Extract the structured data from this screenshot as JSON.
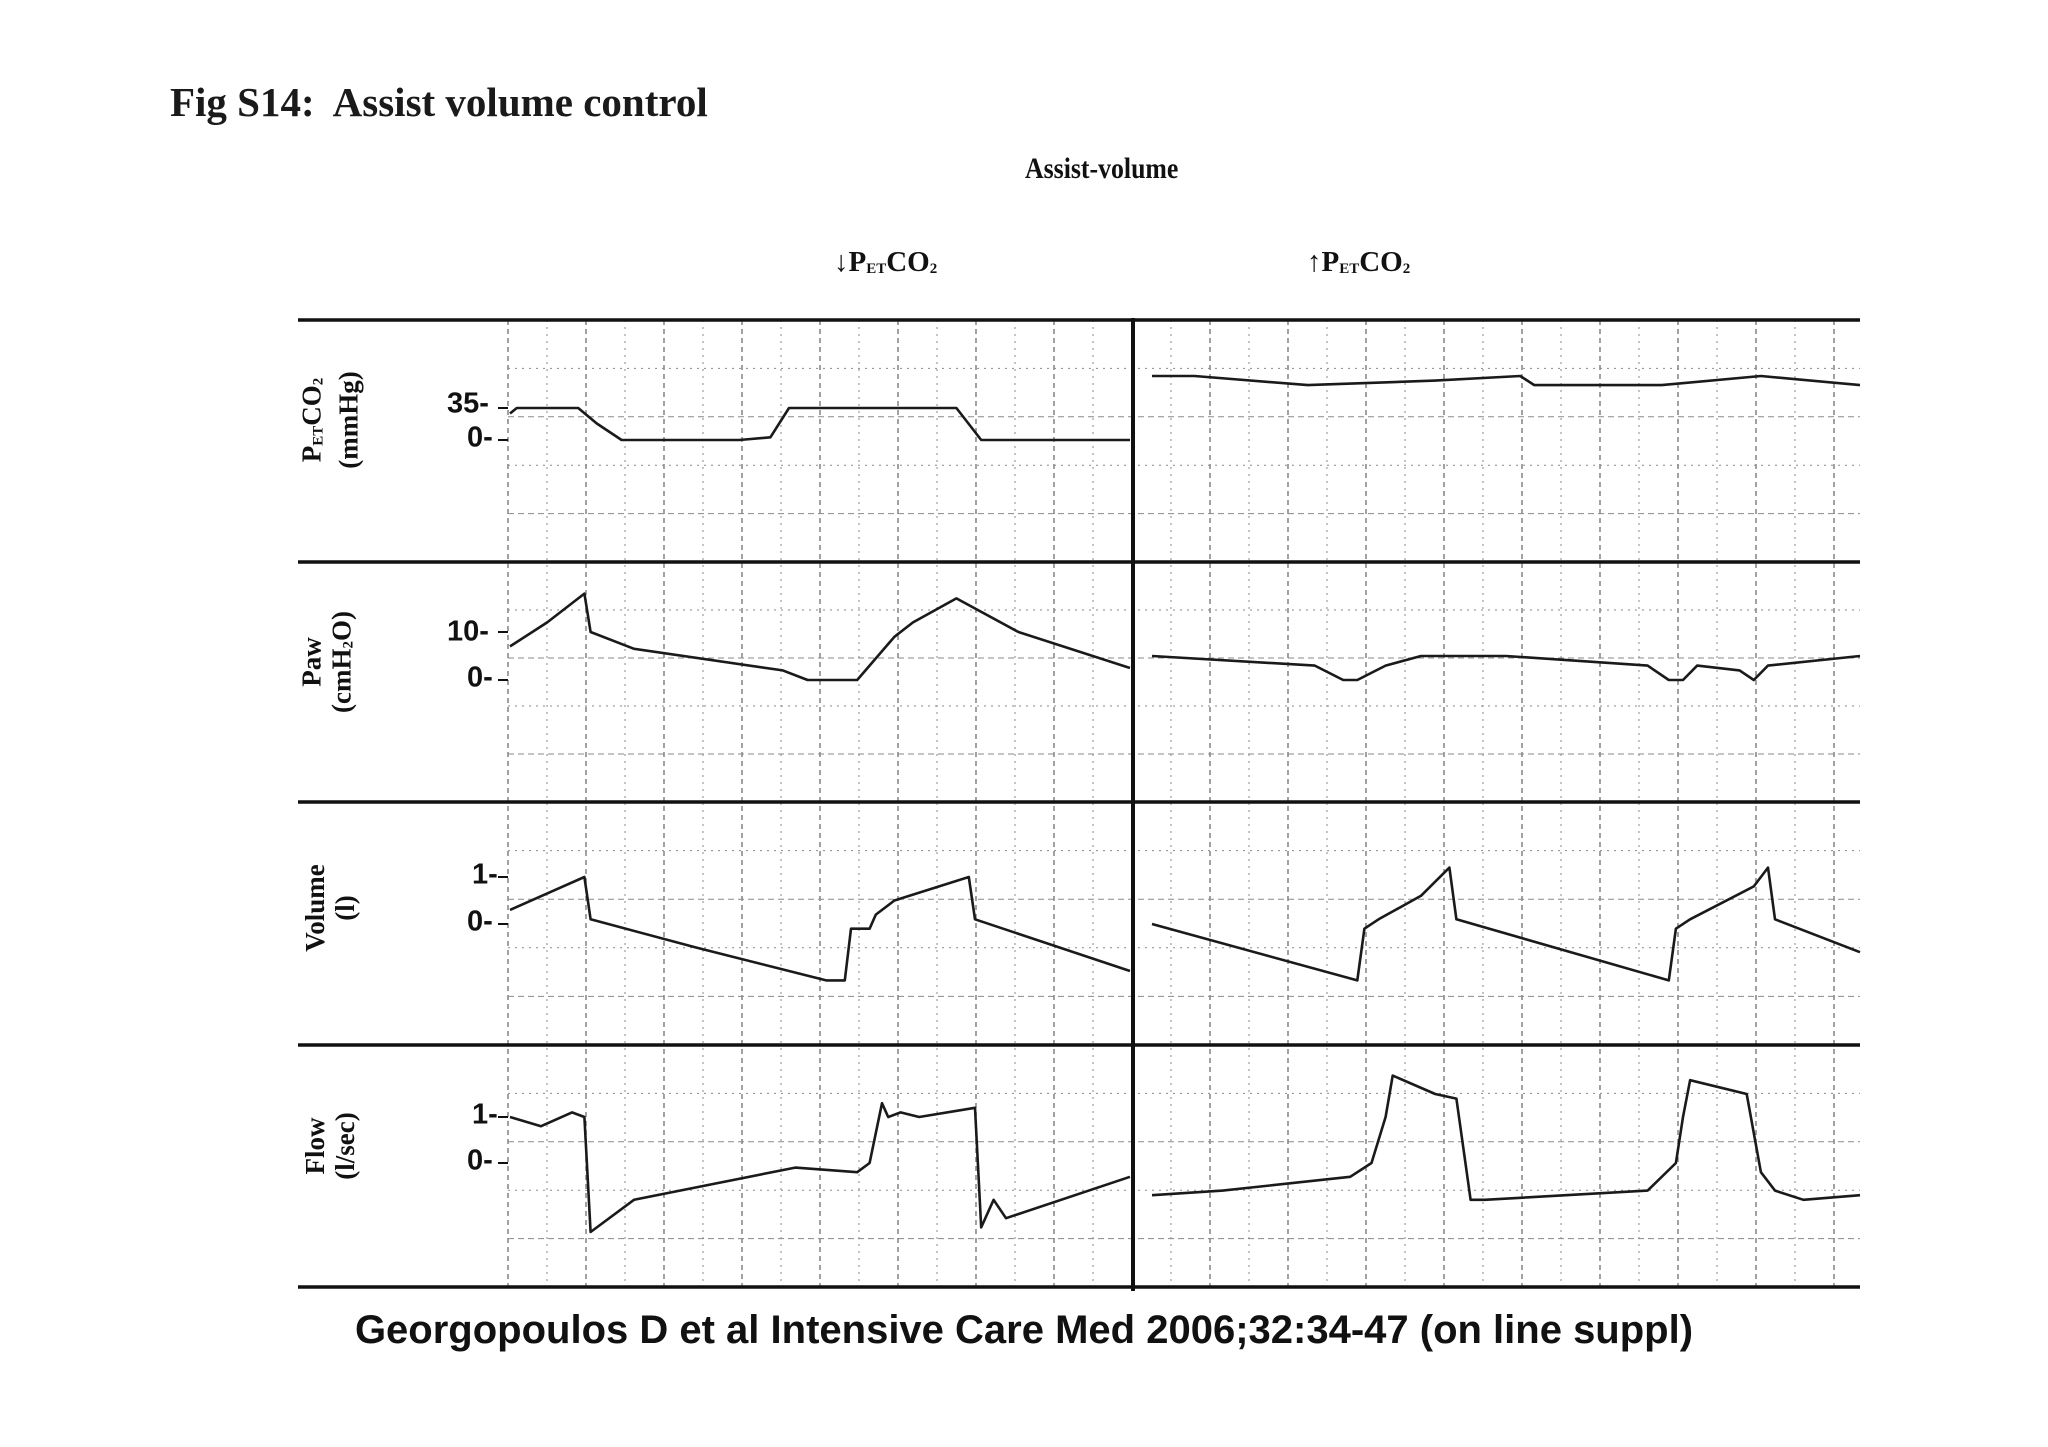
{
  "figure": {
    "title_left": "Fig S14:",
    "title_right": "Assist volume control",
    "citation": "Georgopoulos D et al Intensive Care Med 2006;32:34-47 (on line suppl)"
  },
  "chart_data": {
    "type": "line",
    "title": "Assist-volume",
    "grid": true,
    "legend": "none",
    "segments": [
      {
        "arrow": "↓",
        "label_main": "P",
        "label_sub": "ET",
        "label_tail": "CO",
        "label_sub2": "2"
      },
      {
        "arrow": "↑",
        "label_main": "P",
        "label_sub": "ET",
        "label_tail": "CO",
        "label_sub2": "2"
      }
    ],
    "time_range": [
      0,
      1
    ],
    "panels": [
      {
        "key": "petco2",
        "label_main": "P",
        "label_sub": "ET",
        "label_tail": "CO",
        "label_sub2": "2",
        "unit": "(mmHg)",
        "ticks": [
          "35-",
          "0-"
        ],
        "tick_values": [
          35,
          0
        ],
        "ylim": [
          -80,
          52
        ],
        "series": [
          {
            "segment": 0,
            "x": [
              0,
              0.011,
              0.11,
              0.14,
              0.18,
              0.19,
              0.37,
              0.42,
              0.45,
              0.66,
              0.72,
              0.76,
              1.0
            ],
            "y": [
              29,
              35,
              35,
              18,
              0,
              0,
              0,
              3,
              35,
              35,
              35,
              0,
              0
            ]
          },
          {
            "segment": 1,
            "x": [
              0,
              0.06,
              0.22,
              0.4,
              0.52,
              0.54,
              0.72,
              0.86,
              1.0
            ],
            "y": [
              70,
              70,
              60,
              65,
              70,
              60,
              60,
              70,
              60
            ]
          }
        ]
      },
      {
        "key": "paw",
        "label_main": "Paw",
        "label_sub": "",
        "label_tail": "",
        "label_sub2": "",
        "unit_main": "(cmH",
        "unit_sub": "2",
        "unit_tail": "O)",
        "ticks": [
          "10-",
          "0-"
        ],
        "tick_values": [
          10,
          0
        ],
        "ylim": [
          -16,
          20
        ],
        "series": [
          {
            "segment": 0,
            "x": [
              0,
              0.06,
              0.12,
              0.13,
              0.2,
              0.44,
              0.48,
              0.56,
              0.62,
              0.65,
              0.72,
              0.82,
              1.0
            ],
            "y": [
              7,
              12,
              18,
              10,
              6.5,
              2,
              0,
              0,
              9,
              12,
              17,
              10,
              2.5
            ]
          },
          {
            "segment": 1,
            "x": [
              0,
              0.23,
              0.27,
              0.29,
              0.33,
              0.38,
              0.5,
              0.7,
              0.73,
              0.75,
              0.77,
              0.83,
              0.85,
              0.87,
              1.0
            ],
            "y": [
              5,
              3,
              0,
              0,
              3,
              5,
              5,
              3,
              0,
              0,
              3,
              2,
              0,
              3,
              5
            ]
          }
        ]
      },
      {
        "key": "volume",
        "label_main": "Volume",
        "label_sub": "",
        "label_tail": "",
        "label_sub2": "",
        "unit": "(l)",
        "ticks": [
          "1-",
          "0-"
        ],
        "tick_values": [
          1,
          0
        ],
        "ylim": [
          -2.5,
          1.7
        ],
        "series": [
          {
            "segment": 0,
            "x": [
              0,
              0.12,
              0.13,
              0.3,
              0.51,
              0.54,
              0.55,
              0.58,
              0.59,
              0.62,
              0.74,
              0.75,
              1.0
            ],
            "y": [
              0.3,
              1.0,
              0.1,
              -0.5,
              -1.2,
              -1.2,
              -0.1,
              -0.1,
              0.2,
              0.5,
              1.0,
              0.1,
              -1.0
            ]
          },
          {
            "segment": 1,
            "x": [
              0,
              0.29,
              0.3,
              0.32,
              0.38,
              0.42,
              0.43,
              0.73,
              0.74,
              0.76,
              0.85,
              0.87,
              0.88,
              1.0
            ],
            "y": [
              0,
              -1.2,
              -0.1,
              0.1,
              0.6,
              1.2,
              0.1,
              -1.2,
              -0.1,
              0.1,
              0.8,
              1.2,
              0.1,
              -0.6
            ]
          }
        ]
      },
      {
        "key": "flow",
        "label_main": "Flow",
        "label_sub": "",
        "label_tail": "",
        "label_sub2": "",
        "unit": "(l/sec)",
        "ticks": [
          "1-",
          "0-"
        ],
        "tick_values": [
          1,
          0
        ],
        "ylim": [
          -2.8,
          2.4
        ],
        "series": [
          {
            "segment": 0,
            "x": [
              0,
              0.05,
              0.1,
              0.12,
              0.13,
              0.2,
              0.46,
              0.56,
              0.58,
              0.6,
              0.61,
              0.63,
              0.66,
              0.75,
              0.76,
              0.78,
              0.8,
              1.0
            ],
            "y": [
              1.0,
              0.8,
              1.1,
              1.0,
              -1.5,
              -0.8,
              -0.1,
              -0.2,
              0,
              1.3,
              1.0,
              1.1,
              1.0,
              1.2,
              -1.4,
              -0.8,
              -1.2,
              -0.3
            ]
          },
          {
            "segment": 1,
            "x": [
              0,
              0.1,
              0.28,
              0.31,
              0.33,
              0.34,
              0.4,
              0.43,
              0.45,
              0.47,
              0.7,
              0.74,
              0.75,
              0.76,
              0.84,
              0.86,
              0.88,
              0.92,
              1.0
            ],
            "y": [
              -0.7,
              -0.6,
              -0.3,
              0,
              1.0,
              1.9,
              1.5,
              1.4,
              -0.8,
              -0.8,
              -0.6,
              0,
              1.0,
              1.8,
              1.5,
              -0.2,
              -0.6,
              -0.8,
              -0.7
            ]
          }
        ]
      }
    ]
  },
  "colors": {
    "trace": "#1a1a1a",
    "grid": "#8a8a8a",
    "frame": "#111111"
  }
}
